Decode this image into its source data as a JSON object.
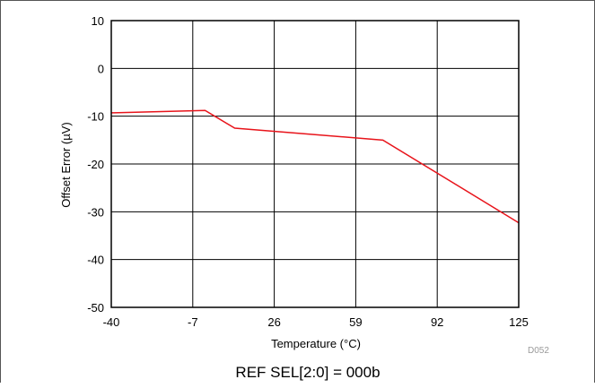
{
  "chart_data": {
    "type": "line",
    "title": "",
    "xlabel": "Temperature (°C)",
    "ylabel": "Offset Error (µV)",
    "figure_id": "D052",
    "caption": "REF  SEL[2:0] = 000b",
    "xlim": [
      -40,
      125
    ],
    "ylim": [
      -50,
      10
    ],
    "x_ticks": [
      -40,
      -7,
      26,
      59,
      92,
      125
    ],
    "x_tick_labels": [
      "-40",
      "-7",
      "26",
      "59",
      "92",
      "125"
    ],
    "y_ticks": [
      10,
      0,
      -10,
      -20,
      -30,
      -40,
      -50
    ],
    "y_tick_labels": [
      "10",
      "0",
      "-10",
      "-20",
      "-30",
      "-40",
      "-50"
    ],
    "grid": true,
    "series": [
      {
        "color": "#e8141b",
        "x": [
          -40,
          -2,
          10,
          70,
          125
        ],
        "y": [
          -9.3,
          -8.8,
          -12.5,
          -15,
          -32.3
        ]
      }
    ]
  }
}
